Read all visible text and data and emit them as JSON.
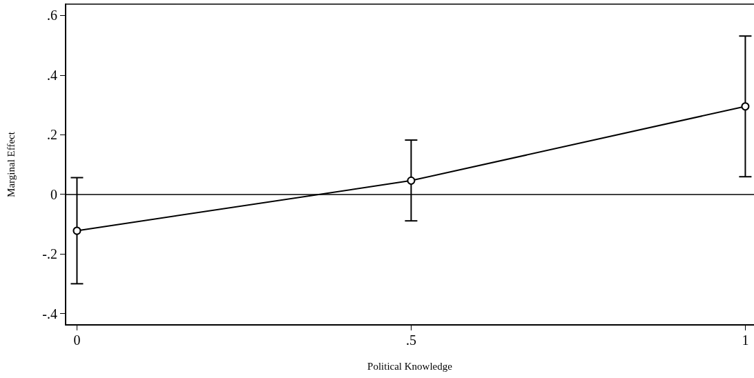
{
  "chart_data": {
    "type": "line",
    "xlabel": "Political Knowledge",
    "ylabel": "Marginal Effect",
    "x": [
      0,
      0.5,
      1
    ],
    "series": [
      {
        "color": "#000000",
        "values": [
          -0.122,
          0.046,
          0.295
        ],
        "errors": [
          [
            -0.3,
            0.056
          ],
          [
            -0.089,
            0.182
          ],
          [
            0.059,
            0.531
          ]
        ]
      }
    ],
    "xlim": [
      -0.017,
      1.013
    ],
    "xticks": [
      0,
      {
        "value": 0.5,
        "label": ".5"
      },
      1
    ],
    "ylim": [
      -0.438,
      0.638
    ],
    "yticks": [
      {
        "value": -0.4,
        "label": "-.4"
      },
      {
        "value": -0.2,
        "label": "-.2"
      },
      0,
      {
        "value": 0.2,
        "label": ".2"
      },
      {
        "value": 0.4,
        "label": ".4"
      },
      {
        "value": 0.6,
        "label": ".6"
      }
    ],
    "ref_lines": [
      {
        "axis": "y",
        "value": 0,
        "color": "#000000"
      }
    ],
    "grid": false,
    "marker": "circle",
    "line_style": "solid"
  }
}
